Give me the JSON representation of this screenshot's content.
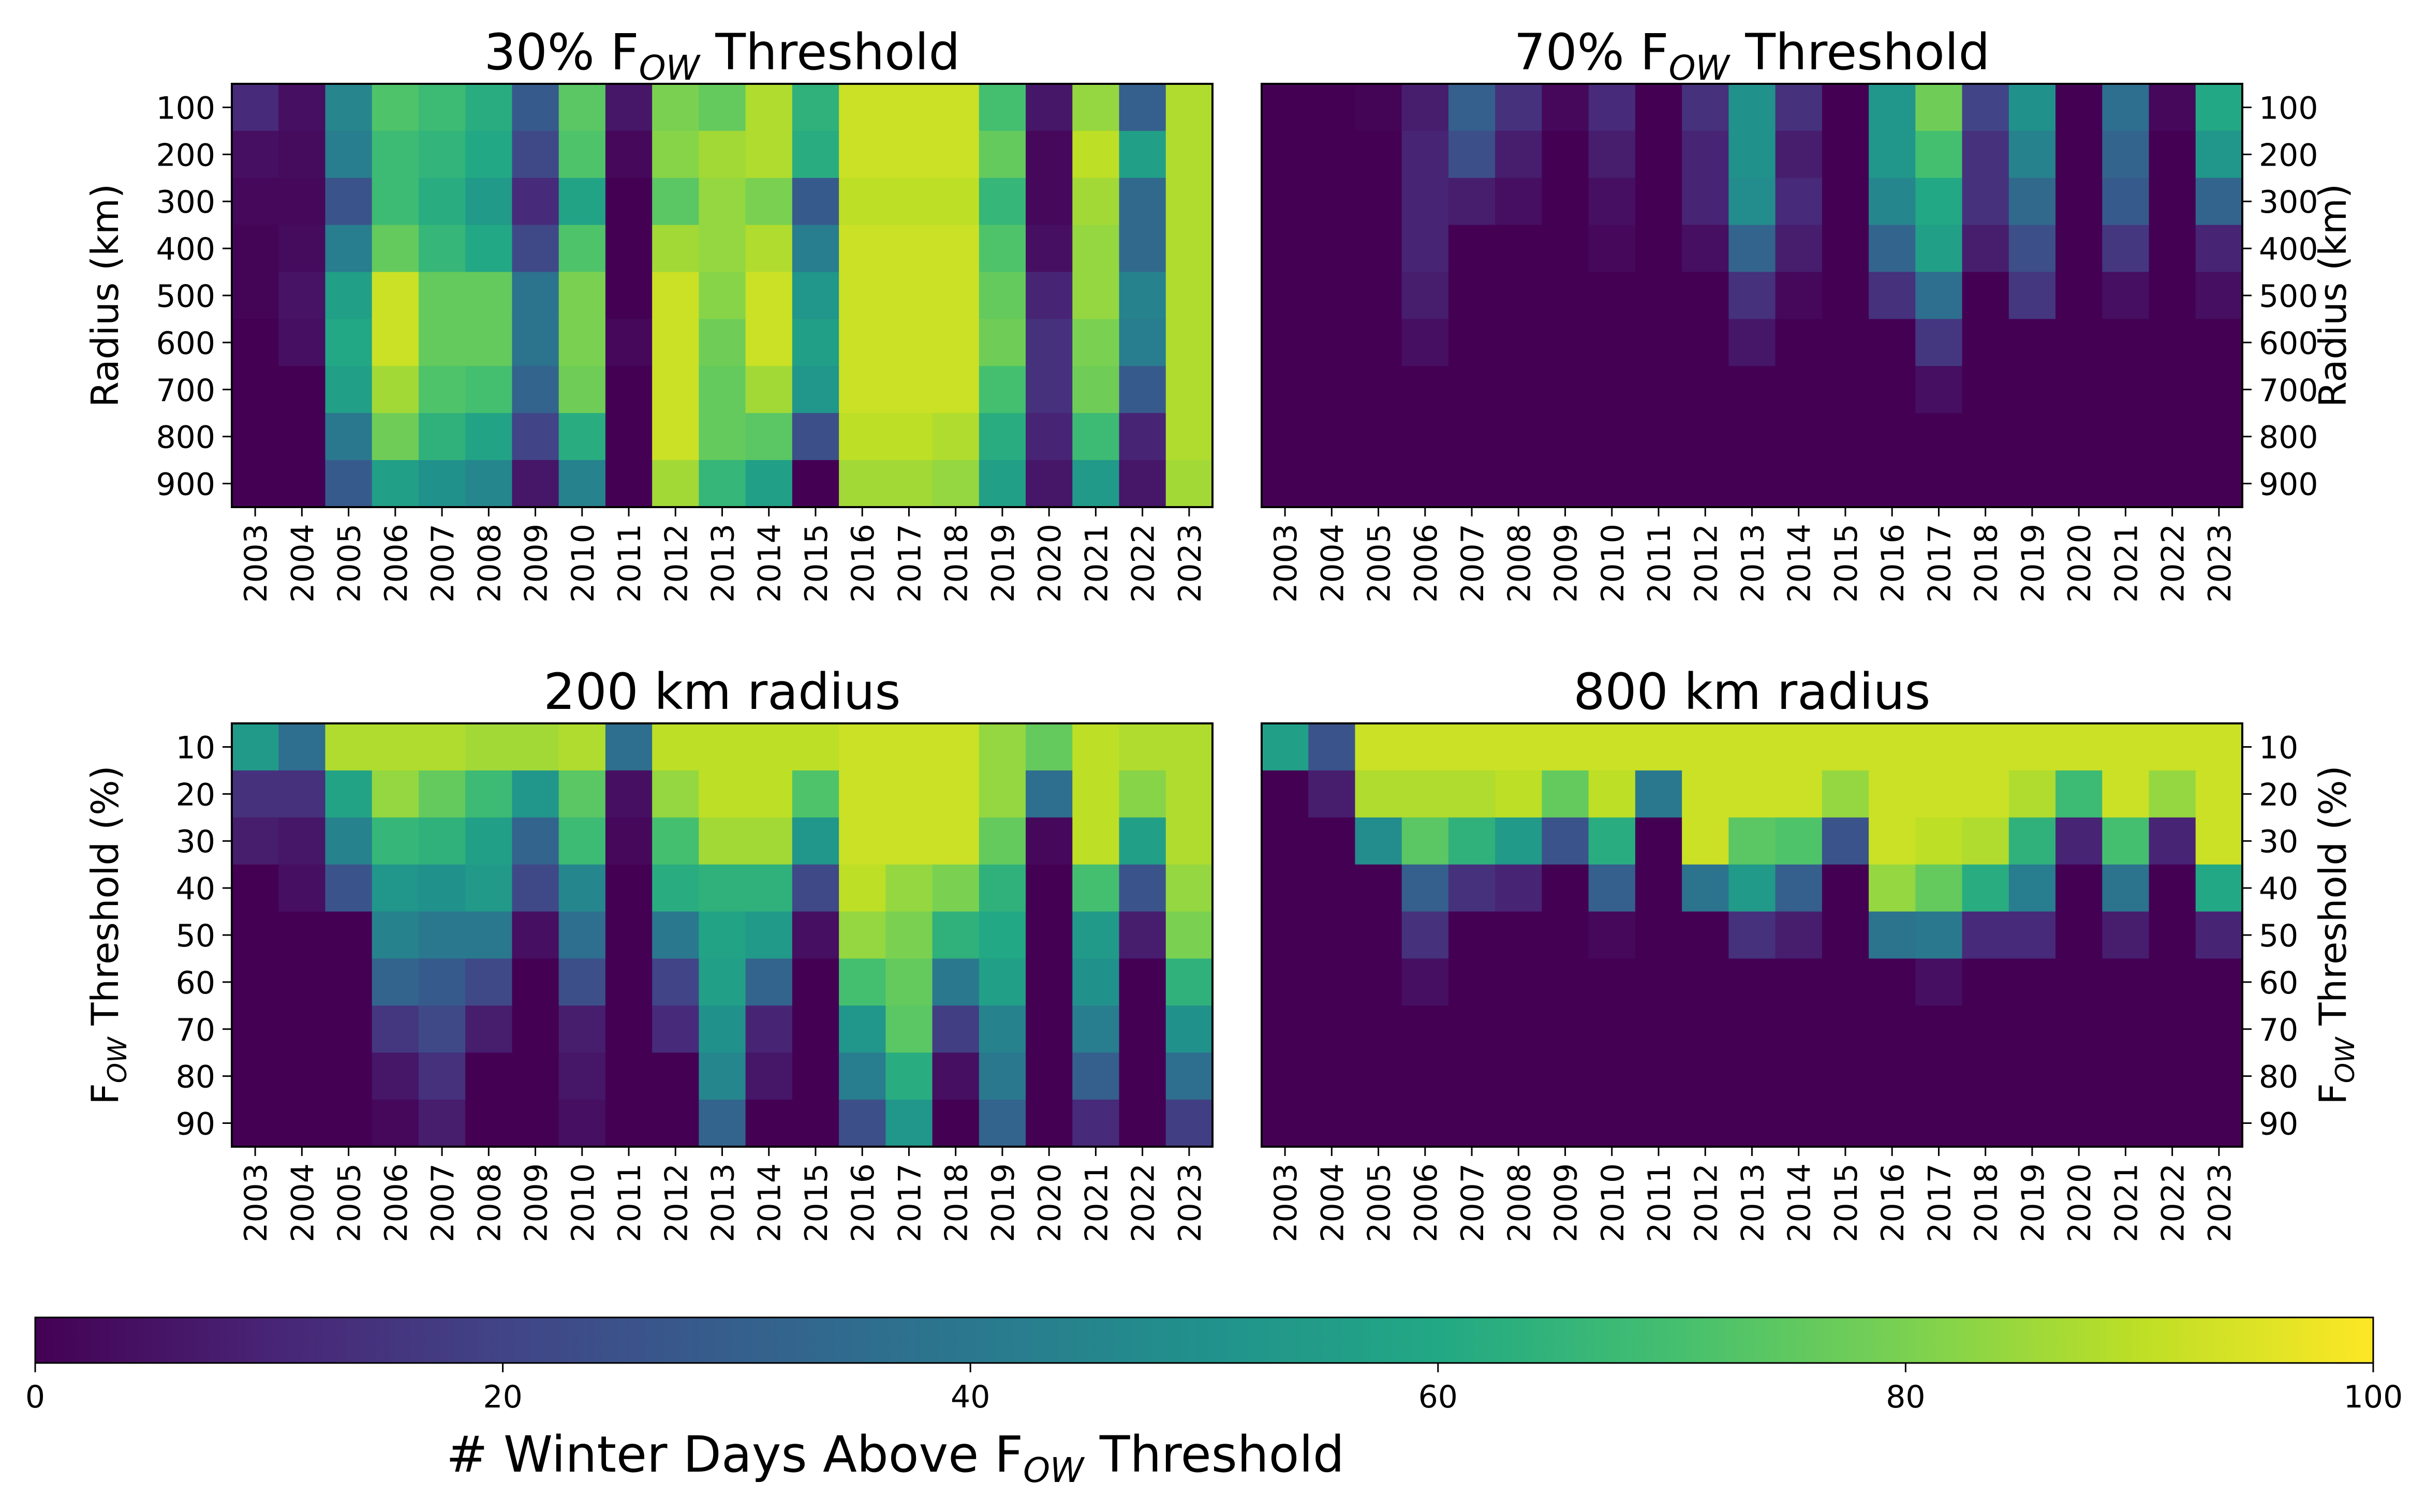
{
  "figure": {
    "colorbar": {
      "label_prefix": "# Winter Days Above F",
      "label_sub": "OW",
      "label_suffix": " Threshold",
      "range": [
        0,
        100
      ],
      "ticks": [
        0,
        20,
        40,
        60,
        80,
        100
      ],
      "colormap": "viridis"
    }
  },
  "chart_data": [
    {
      "type": "heatmap",
      "title_prefix": "30% F",
      "title_sub": "OW",
      "title_suffix": " Threshold",
      "ylabel": "Radius (km)",
      "ylabel_side": "left",
      "x": [
        "2003",
        "2004",
        "2005",
        "2006",
        "2007",
        "2008",
        "2009",
        "2010",
        "2011",
        "2012",
        "2013",
        "2014",
        "2015",
        "2016",
        "2017",
        "2018",
        "2019",
        "2020",
        "2021",
        "2022",
        "2023"
      ],
      "y": [
        "100",
        "200",
        "300",
        "400",
        "500",
        "600",
        "700",
        "800",
        "900"
      ],
      "values": [
        [
          12,
          4,
          45,
          72,
          68,
          62,
          28,
          74,
          6,
          80,
          76,
          88,
          64,
          92,
          92,
          92,
          70,
          6,
          84,
          30,
          88
        ],
        [
          4,
          3,
          42,
          68,
          65,
          60,
          22,
          72,
          2,
          82,
          86,
          88,
          62,
          92,
          92,
          92,
          76,
          2,
          90,
          56,
          88
        ],
        [
          2,
          2,
          26,
          68,
          62,
          54,
          12,
          58,
          0,
          74,
          84,
          80,
          28,
          90,
          90,
          90,
          66,
          2,
          86,
          34,
          88
        ],
        [
          1,
          3,
          42,
          76,
          66,
          60,
          22,
          72,
          0,
          86,
          84,
          88,
          42,
          92,
          92,
          92,
          72,
          4,
          84,
          34,
          88
        ],
        [
          1,
          5,
          56,
          92,
          76,
          76,
          38,
          80,
          0,
          92,
          82,
          92,
          52,
          92,
          92,
          92,
          76,
          10,
          84,
          44,
          88
        ],
        [
          0,
          4,
          60,
          92,
          76,
          76,
          38,
          80,
          2,
          92,
          78,
          92,
          56,
          92,
          92,
          92,
          78,
          14,
          80,
          42,
          88
        ],
        [
          0,
          0,
          56,
          86,
          72,
          70,
          32,
          78,
          0,
          92,
          76,
          86,
          52,
          92,
          92,
          92,
          70,
          14,
          78,
          28,
          88
        ],
        [
          0,
          0,
          40,
          78,
          64,
          58,
          20,
          62,
          0,
          92,
          76,
          74,
          24,
          90,
          90,
          88,
          62,
          10,
          68,
          10,
          88
        ],
        [
          0,
          0,
          28,
          56,
          50,
          46,
          6,
          44,
          0,
          86,
          66,
          56,
          0,
          86,
          86,
          84,
          56,
          6,
          54,
          6,
          86
        ]
      ]
    },
    {
      "type": "heatmap",
      "title_prefix": "70% F",
      "title_sub": "OW",
      "title_suffix": " Threshold",
      "ylabel": "Radius (km)",
      "ylabel_side": "right",
      "x": [
        "2003",
        "2004",
        "2005",
        "2006",
        "2007",
        "2008",
        "2009",
        "2010",
        "2011",
        "2012",
        "2013",
        "2014",
        "2015",
        "2016",
        "2017",
        "2018",
        "2019",
        "2020",
        "2021",
        "2022",
        "2023"
      ],
      "y": [
        "100",
        "200",
        "300",
        "400",
        "500",
        "600",
        "700",
        "800",
        "900"
      ],
      "values": [
        [
          0,
          0,
          1,
          8,
          30,
          14,
          2,
          12,
          0,
          14,
          50,
          14,
          0,
          52,
          78,
          20,
          50,
          0,
          36,
          2,
          60
        ],
        [
          0,
          0,
          0,
          10,
          24,
          8,
          0,
          8,
          0,
          10,
          50,
          8,
          0,
          52,
          70,
          14,
          44,
          0,
          32,
          0,
          52
        ],
        [
          0,
          0,
          0,
          10,
          8,
          4,
          0,
          4,
          0,
          10,
          48,
          12,
          0,
          46,
          60,
          14,
          34,
          0,
          28,
          0,
          32
        ],
        [
          0,
          0,
          0,
          10,
          0,
          0,
          0,
          2,
          0,
          4,
          32,
          8,
          0,
          32,
          56,
          8,
          24,
          0,
          16,
          0,
          10
        ],
        [
          0,
          0,
          0,
          8,
          0,
          0,
          0,
          0,
          0,
          0,
          14,
          2,
          0,
          14,
          36,
          0,
          16,
          0,
          4,
          0,
          4
        ],
        [
          0,
          0,
          0,
          4,
          0,
          0,
          0,
          0,
          0,
          0,
          6,
          0,
          0,
          0,
          16,
          0,
          0,
          0,
          0,
          0,
          0
        ],
        [
          0,
          0,
          0,
          0,
          0,
          0,
          0,
          0,
          0,
          0,
          0,
          0,
          0,
          0,
          4,
          0,
          0,
          0,
          0,
          0,
          0
        ],
        [
          0,
          0,
          0,
          0,
          0,
          0,
          0,
          0,
          0,
          0,
          0,
          0,
          0,
          0,
          0,
          0,
          0,
          0,
          0,
          0,
          0
        ],
        [
          0,
          0,
          0,
          0,
          0,
          0,
          0,
          0,
          0,
          0,
          0,
          0,
          0,
          0,
          0,
          0,
          0,
          0,
          0,
          0,
          0
        ]
      ]
    },
    {
      "type": "heatmap",
      "title_prefix": "200 km radius",
      "title_sub": "",
      "title_suffix": "",
      "ylabel_prefix": "F",
      "ylabel_sub": "OW",
      "ylabel_suffix": " Threshold (%)",
      "ylabel_side": "left",
      "x": [
        "2003",
        "2004",
        "2005",
        "2006",
        "2007",
        "2008",
        "2009",
        "2010",
        "2011",
        "2012",
        "2013",
        "2014",
        "2015",
        "2016",
        "2017",
        "2018",
        "2019",
        "2020",
        "2021",
        "2022",
        "2023"
      ],
      "y": [
        "10",
        "20",
        "30",
        "40",
        "50",
        "60",
        "70",
        "80",
        "90"
      ],
      "values": [
        [
          54,
          36,
          88,
          88,
          88,
          86,
          86,
          88,
          36,
          90,
          90,
          90,
          90,
          92,
          92,
          92,
          84,
          76,
          90,
          88,
          88
        ],
        [
          14,
          14,
          58,
          84,
          76,
          68,
          52,
          74,
          4,
          84,
          90,
          90,
          72,
          92,
          92,
          92,
          84,
          36,
          90,
          82,
          88
        ],
        [
          8,
          6,
          44,
          66,
          64,
          56,
          32,
          68,
          2,
          70,
          86,
          86,
          52,
          92,
          92,
          92,
          76,
          2,
          90,
          56,
          88
        ],
        [
          0,
          4,
          26,
          52,
          50,
          54,
          22,
          46,
          0,
          62,
          64,
          64,
          22,
          90,
          84,
          80,
          64,
          0,
          70,
          26,
          84
        ],
        [
          0,
          0,
          0,
          44,
          40,
          40,
          4,
          36,
          0,
          40,
          58,
          54,
          4,
          84,
          80,
          64,
          60,
          0,
          54,
          8,
          80
        ],
        [
          0,
          0,
          0,
          32,
          28,
          22,
          0,
          24,
          0,
          20,
          56,
          32,
          0,
          70,
          76,
          40,
          56,
          0,
          50,
          0,
          64
        ],
        [
          0,
          0,
          0,
          16,
          22,
          8,
          0,
          8,
          0,
          12,
          50,
          10,
          0,
          52,
          74,
          18,
          44,
          0,
          42,
          0,
          50
        ],
        [
          0,
          0,
          0,
          6,
          14,
          0,
          0,
          6,
          0,
          0,
          46,
          6,
          0,
          42,
          62,
          4,
          40,
          0,
          30,
          0,
          36
        ],
        [
          0,
          0,
          0,
          2,
          8,
          0,
          0,
          4,
          0,
          0,
          32,
          0,
          0,
          24,
          52,
          0,
          32,
          0,
          12,
          0,
          18
        ]
      ]
    },
    {
      "type": "heatmap",
      "title_prefix": "800 km radius",
      "title_sub": "",
      "title_suffix": "",
      "ylabel_prefix": "F",
      "ylabel_sub": "OW",
      "ylabel_suffix": " Threshold (%)",
      "ylabel_side": "right",
      "x": [
        "2003",
        "2004",
        "2005",
        "2006",
        "2007",
        "2008",
        "2009",
        "2010",
        "2011",
        "2012",
        "2013",
        "2014",
        "2015",
        "2016",
        "2017",
        "2018",
        "2019",
        "2020",
        "2021",
        "2022",
        "2023"
      ],
      "y": [
        "10",
        "20",
        "30",
        "40",
        "50",
        "60",
        "70",
        "80",
        "90"
      ],
      "values": [
        [
          56,
          26,
          92,
          92,
          92,
          92,
          92,
          92,
          92,
          92,
          92,
          92,
          92,
          92,
          92,
          92,
          92,
          92,
          92,
          92,
          92
        ],
        [
          0,
          8,
          88,
          88,
          88,
          90,
          76,
          90,
          40,
          92,
          92,
          92,
          84,
          92,
          92,
          92,
          88,
          68,
          92,
          84,
          92
        ],
        [
          0,
          0,
          48,
          74,
          64,
          54,
          26,
          62,
          0,
          92,
          74,
          72,
          26,
          92,
          90,
          88,
          64,
          10,
          70,
          10,
          92
        ],
        [
          0,
          0,
          0,
          30,
          14,
          10,
          0,
          30,
          0,
          38,
          54,
          30,
          0,
          84,
          76,
          62,
          42,
          0,
          38,
          0,
          60
        ],
        [
          0,
          0,
          0,
          14,
          0,
          0,
          0,
          2,
          0,
          0,
          14,
          8,
          0,
          38,
          40,
          12,
          12,
          0,
          8,
          0,
          10
        ],
        [
          0,
          0,
          0,
          4,
          0,
          0,
          0,
          0,
          0,
          0,
          0,
          0,
          0,
          0,
          4,
          0,
          0,
          0,
          0,
          0,
          0
        ],
        [
          0,
          0,
          0,
          0,
          0,
          0,
          0,
          0,
          0,
          0,
          0,
          0,
          0,
          0,
          0,
          0,
          0,
          0,
          0,
          0,
          0
        ],
        [
          0,
          0,
          0,
          0,
          0,
          0,
          0,
          0,
          0,
          0,
          0,
          0,
          0,
          0,
          0,
          0,
          0,
          0,
          0,
          0,
          0
        ],
        [
          0,
          0,
          0,
          0,
          0,
          0,
          0,
          0,
          0,
          0,
          0,
          0,
          0,
          0,
          0,
          0,
          0,
          0,
          0,
          0,
          0
        ]
      ]
    }
  ]
}
